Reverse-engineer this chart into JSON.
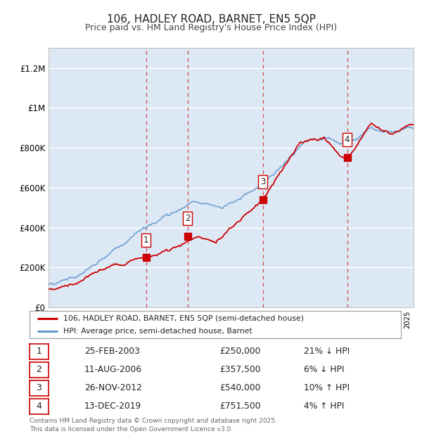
{
  "title": "106, HADLEY ROAD, BARNET, EN5 5QP",
  "subtitle": "Price paid vs. HM Land Registry's House Price Index (HPI)",
  "background_color": "#dde8f5",
  "ylim": [
    0,
    1300000
  ],
  "yticks": [
    0,
    200000,
    400000,
    600000,
    800000,
    1000000,
    1200000
  ],
  "ytick_labels": [
    "£0",
    "£200K",
    "£400K",
    "£600K",
    "£800K",
    "£1M",
    "£1.2M"
  ],
  "sale_color": "#cc0000",
  "hpi_color": "#6699cc",
  "purchase_years": [
    2003.15,
    2006.61,
    2012.9,
    2019.95
  ],
  "purchase_prices": [
    250000,
    357500,
    540000,
    751500
  ],
  "purchase_labels": [
    "1",
    "2",
    "3",
    "4"
  ],
  "dashed_line_color": "#cc3333",
  "sale_dates": [
    "25-FEB-2003",
    "11-AUG-2006",
    "26-NOV-2012",
    "13-DEC-2019"
  ],
  "sale_prices_str": [
    "£250,000",
    "£357,500",
    "£540,000",
    "£751,500"
  ],
  "hpi_changes": [
    "21% ↓ HPI",
    "6% ↓ HPI",
    "10% ↑ HPI",
    "4% ↑ HPI"
  ],
  "legend1": "106, HADLEY ROAD, BARNET, EN5 5QP (semi-detached house)",
  "legend2": "HPI: Average price, semi-detached house, Barnet",
  "footer": "Contains HM Land Registry data © Crown copyright and database right 2025.\nThis data is licensed under the Open Government Licence v3.0.",
  "xmin": 1995,
  "xmax": 2025.5
}
